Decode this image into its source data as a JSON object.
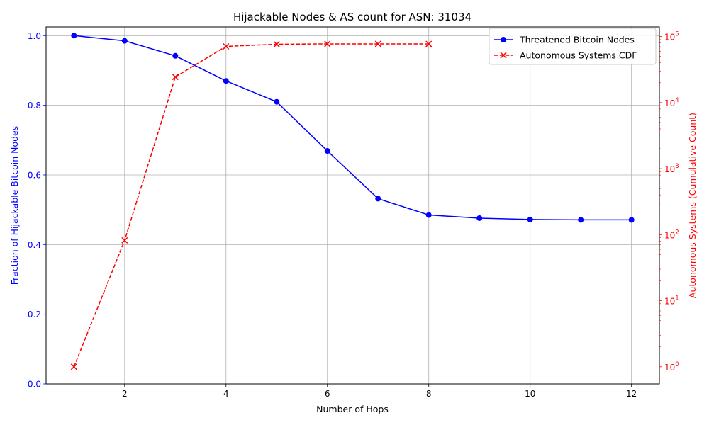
{
  "chart_data": {
    "type": "line",
    "title": "Hijackable Nodes & AS count for ASN: 31034",
    "xlabel": "Number of Hops",
    "ylabel_left": "Fraction of Hijackable Bitcoin Nodes",
    "ylabel_right": "Autonomous Systems (Cumulative Count)",
    "x_ticks": [
      2,
      4,
      6,
      8,
      10,
      12
    ],
    "x_tick_labels": [
      "2",
      "4",
      "6",
      "8",
      "10",
      "12"
    ],
    "xlim": [
      0.45,
      12.55
    ],
    "y_left_ticks": [
      0.0,
      0.2,
      0.4,
      0.6,
      0.8,
      1.0
    ],
    "y_left_tick_labels": [
      "0.0",
      "0.2",
      "0.4",
      "0.6",
      "0.8",
      "1.0"
    ],
    "ylim_left": [
      0.0,
      1.025
    ],
    "y_right_scale": "log",
    "y_right_ticks": [
      1,
      10,
      100,
      1000,
      10000,
      100000
    ],
    "y_right_tick_labels": [
      "10",
      "10",
      "10",
      "10",
      "10",
      "10"
    ],
    "y_right_tick_exponents": [
      "0",
      "1",
      "2",
      "3",
      "4",
      "5"
    ],
    "ylim_right": [
      0.55,
      140000
    ],
    "grid": true,
    "legend_position": "top-right",
    "series": [
      {
        "name": "Threatened Bitcoin Nodes",
        "axis": "left",
        "color": "#0000ff",
        "line_style": "solid",
        "marker": "circle",
        "x": [
          1,
          2,
          3,
          4,
          5,
          6,
          7,
          8,
          9,
          10,
          11,
          12
        ],
        "values": [
          1.0,
          0.985,
          0.942,
          0.87,
          0.81,
          0.669,
          0.532,
          0.485,
          0.476,
          0.472,
          0.471,
          0.471
        ]
      },
      {
        "name": "Autonomous Systems CDF",
        "axis": "right",
        "color": "#ff0000",
        "line_style": "dashed",
        "marker": "x",
        "x": [
          1,
          2,
          3,
          4,
          5,
          6,
          7,
          8
        ],
        "values": [
          1,
          82,
          24500,
          71000,
          76500,
          77500,
          77500,
          77300
        ]
      }
    ]
  }
}
